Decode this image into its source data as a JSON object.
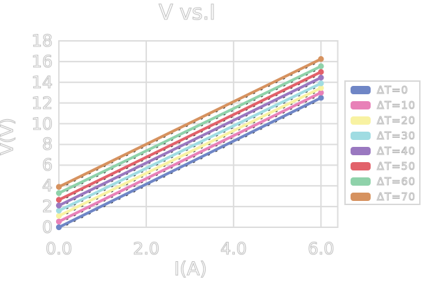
{
  "title": "V vs.I",
  "axes": {
    "x_label": "I(A)",
    "y_label": "V(V)",
    "x_ticks": [
      "0.0",
      "2.0",
      "4.0",
      "6.0"
    ],
    "y_ticks": [
      "18",
      "16",
      "14",
      "12",
      "10",
      "8",
      "6",
      "4",
      "2",
      "0"
    ]
  },
  "chart_data": {
    "type": "line",
    "title": "V vs.I",
    "xlabel": "I(A)",
    "ylabel": "V(V)",
    "x": [
      0,
      6
    ],
    "series": [
      {
        "name": "ΔT=0",
        "color": "#6f86c6",
        "values": [
          0.0,
          12.5
        ]
      },
      {
        "name": "ΔT=10",
        "color": "#e881b8",
        "values": [
          0.55,
          13.0
        ]
      },
      {
        "name": "ΔT=20",
        "color": "#f8f2a2",
        "values": [
          1.1,
          13.45
        ]
      },
      {
        "name": "ΔT=30",
        "color": "#a0dce2",
        "values": [
          1.6,
          13.9
        ]
      },
      {
        "name": "ΔT=40",
        "color": "#9a78c0",
        "values": [
          2.1,
          14.45
        ]
      },
      {
        "name": "ΔT=50",
        "color": "#e2616a",
        "values": [
          2.65,
          15.0
        ]
      },
      {
        "name": "ΔT=60",
        "color": "#8fd2aa",
        "values": [
          3.3,
          15.55
        ]
      },
      {
        "name": "ΔT=70",
        "color": "#d6925f",
        "values": [
          3.9,
          16.25
        ]
      }
    ],
    "xlim": [
      0,
      6.4
    ],
    "ylim": [
      0,
      18
    ],
    "x_tick_values": [
      0,
      2,
      4,
      6
    ],
    "y_tick_step": 2,
    "grid": true,
    "legend_position": "right",
    "marker": "endpoint-circles",
    "overlay": "black-dashed-trendlines",
    "colors": {
      "gridline": "#dcdcdc",
      "text_outline": "#c4c4c4",
      "trendline": "#3a3a3a",
      "background": "#ffffff"
    }
  }
}
